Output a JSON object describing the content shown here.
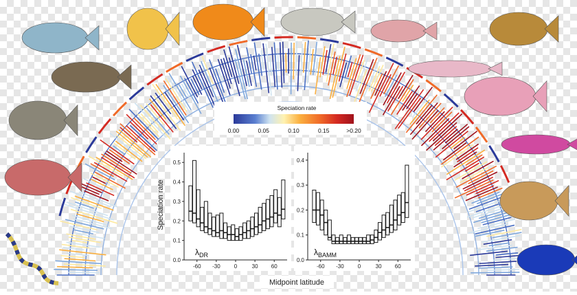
{
  "chart_data": {
    "type": "box",
    "xlabel": "Midpoint latitude",
    "ylabel": "Speciation rate",
    "colorbar": {
      "title": "Speciation rate",
      "ticks": [
        "0.00",
        "0.05",
        "0.10",
        "0.15",
        ">0.20"
      ],
      "range": [
        0,
        0.2
      ]
    },
    "x_ticks": [
      -60,
      -30,
      0,
      30,
      60
    ],
    "xlim": [
      -80,
      80
    ],
    "panels": [
      {
        "label_symbol": "λ",
        "label_sub": "DR",
        "y_ticks": [
          "0.0",
          "0.1",
          "0.2",
          "0.3",
          "0.4",
          "0.5"
        ],
        "ylim": [
          0,
          0.55
        ],
        "boxes": [
          {
            "x": -70,
            "q1": 0.2,
            "median": 0.25,
            "q3": 0.38
          },
          {
            "x": -64,
            "q1": 0.19,
            "median": 0.24,
            "q3": 0.51
          },
          {
            "x": -58,
            "q1": 0.17,
            "median": 0.21,
            "q3": 0.36
          },
          {
            "x": -52,
            "q1": 0.15,
            "median": 0.19,
            "q3": 0.27
          },
          {
            "x": -46,
            "q1": 0.14,
            "median": 0.17,
            "q3": 0.3
          },
          {
            "x": -40,
            "q1": 0.13,
            "median": 0.16,
            "q3": 0.24
          },
          {
            "x": -34,
            "q1": 0.12,
            "median": 0.15,
            "q3": 0.22
          },
          {
            "x": -28,
            "q1": 0.12,
            "median": 0.14,
            "q3": 0.23
          },
          {
            "x": -22,
            "q1": 0.11,
            "median": 0.15,
            "q3": 0.24
          },
          {
            "x": -16,
            "q1": 0.11,
            "median": 0.14,
            "q3": 0.19
          },
          {
            "x": -10,
            "q1": 0.1,
            "median": 0.13,
            "q3": 0.17
          },
          {
            "x": -4,
            "q1": 0.1,
            "median": 0.13,
            "q3": 0.18
          },
          {
            "x": 2,
            "q1": 0.1,
            "median": 0.12,
            "q3": 0.16
          },
          {
            "x": 8,
            "q1": 0.1,
            "median": 0.13,
            "q3": 0.17
          },
          {
            "x": 14,
            "q1": 0.11,
            "median": 0.14,
            "q3": 0.19
          },
          {
            "x": 20,
            "q1": 0.11,
            "median": 0.15,
            "q3": 0.2
          },
          {
            "x": 26,
            "q1": 0.12,
            "median": 0.16,
            "q3": 0.22
          },
          {
            "x": 32,
            "q1": 0.13,
            "median": 0.17,
            "q3": 0.24
          },
          {
            "x": 38,
            "q1": 0.14,
            "median": 0.18,
            "q3": 0.27
          },
          {
            "x": 44,
            "q1": 0.15,
            "median": 0.2,
            "q3": 0.29
          },
          {
            "x": 50,
            "q1": 0.16,
            "median": 0.21,
            "q3": 0.31
          },
          {
            "x": 56,
            "q1": 0.17,
            "median": 0.22,
            "q3": 0.33
          },
          {
            "x": 62,
            "q1": 0.19,
            "median": 0.24,
            "q3": 0.36
          },
          {
            "x": 68,
            "q1": 0.17,
            "median": 0.23,
            "q3": 0.32
          },
          {
            "x": 74,
            "q1": 0.21,
            "median": 0.26,
            "q3": 0.41
          }
        ]
      },
      {
        "label_symbol": "λ",
        "label_sub": "BAMM",
        "y_ticks": [
          "0.0",
          "0.1",
          "0.2",
          "0.3",
          "0.4"
        ],
        "ylim": [
          0,
          0.43
        ],
        "boxes": [
          {
            "x": -70,
            "q1": 0.15,
            "median": 0.2,
            "q3": 0.28
          },
          {
            "x": -64,
            "q1": 0.14,
            "median": 0.2,
            "q3": 0.27
          },
          {
            "x": -58,
            "q1": 0.12,
            "median": 0.18,
            "q3": 0.24
          },
          {
            "x": -52,
            "q1": 0.1,
            "median": 0.15,
            "q3": 0.2
          },
          {
            "x": -46,
            "q1": 0.08,
            "median": 0.09,
            "q3": 0.16
          },
          {
            "x": -40,
            "q1": 0.065,
            "median": 0.075,
            "q3": 0.1
          },
          {
            "x": -34,
            "q1": 0.065,
            "median": 0.075,
            "q3": 0.09
          },
          {
            "x": -28,
            "q1": 0.065,
            "median": 0.075,
            "q3": 0.1
          },
          {
            "x": -22,
            "q1": 0.065,
            "median": 0.075,
            "q3": 0.09
          },
          {
            "x": -16,
            "q1": 0.065,
            "median": 0.075,
            "q3": 0.1
          },
          {
            "x": -10,
            "q1": 0.065,
            "median": 0.075,
            "q3": 0.09
          },
          {
            "x": -4,
            "q1": 0.065,
            "median": 0.075,
            "q3": 0.09
          },
          {
            "x": 2,
            "q1": 0.065,
            "median": 0.075,
            "q3": 0.09
          },
          {
            "x": 8,
            "q1": 0.065,
            "median": 0.075,
            "q3": 0.09
          },
          {
            "x": 14,
            "q1": 0.065,
            "median": 0.075,
            "q3": 0.1
          },
          {
            "x": 20,
            "q1": 0.065,
            "median": 0.08,
            "q3": 0.1
          },
          {
            "x": 26,
            "q1": 0.07,
            "median": 0.09,
            "q3": 0.12
          },
          {
            "x": 32,
            "q1": 0.08,
            "median": 0.11,
            "q3": 0.15
          },
          {
            "x": 38,
            "q1": 0.09,
            "median": 0.12,
            "q3": 0.18
          },
          {
            "x": 44,
            "q1": 0.1,
            "median": 0.13,
            "q3": 0.19
          },
          {
            "x": 50,
            "q1": 0.11,
            "median": 0.14,
            "q3": 0.22
          },
          {
            "x": 56,
            "q1": 0.12,
            "median": 0.16,
            "q3": 0.24
          },
          {
            "x": 62,
            "q1": 0.14,
            "median": 0.18,
            "q3": 0.26
          },
          {
            "x": 68,
            "q1": 0.15,
            "median": 0.19,
            "q3": 0.27
          },
          {
            "x": 74,
            "q1": 0.17,
            "median": 0.23,
            "q3": 0.38
          }
        ]
      }
    ],
    "colors": {
      "box_stroke": "#1a1a1a",
      "tree_blue": "#4a6fc4",
      "tree_red": "#d42a22"
    }
  }
}
